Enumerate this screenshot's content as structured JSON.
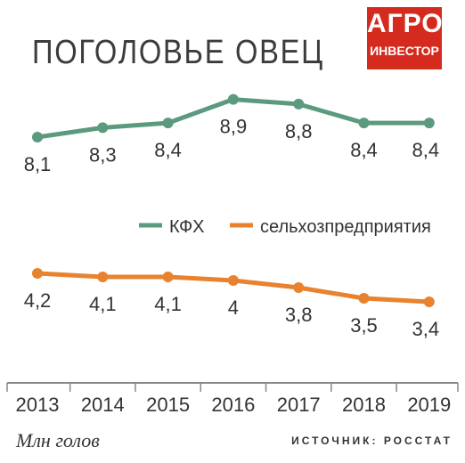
{
  "header": {
    "title": "ПОГОЛОВЬЕ ОВЕЦ",
    "logo_line1": "АГРО",
    "logo_line2": "ИНВЕСТОР"
  },
  "footer": {
    "unit": "Млн голов",
    "source": "ИСТОЧНИК: РОССТАТ"
  },
  "colors": {
    "kfh": "#5b9a7e",
    "agri": "#e8822e",
    "logo_bg": "#d52b1e",
    "text": "#333333"
  },
  "chart_data": {
    "type": "line",
    "categories": [
      "2013",
      "2014",
      "2015",
      "2016",
      "2017",
      "2018",
      "2019"
    ],
    "series": [
      {
        "name": "КФХ",
        "values": [
          8.1,
          8.3,
          8.4,
          8.9,
          8.8,
          8.4,
          8.4
        ],
        "labels": [
          "8,1",
          "8,3",
          "8,4",
          "8,9",
          "8,8",
          "8,4",
          "8,4"
        ],
        "color": "#5b9a7e"
      },
      {
        "name": "сельхозпредприятия",
        "values": [
          4.2,
          4.1,
          4.1,
          4.0,
          3.8,
          3.5,
          3.4
        ],
        "labels": [
          "4,2",
          "4,1",
          "4,1",
          "4",
          "3,8",
          "3,5",
          "3,4"
        ],
        "color": "#e8822e"
      }
    ],
    "legend_position": "middle-right",
    "grid": false
  }
}
